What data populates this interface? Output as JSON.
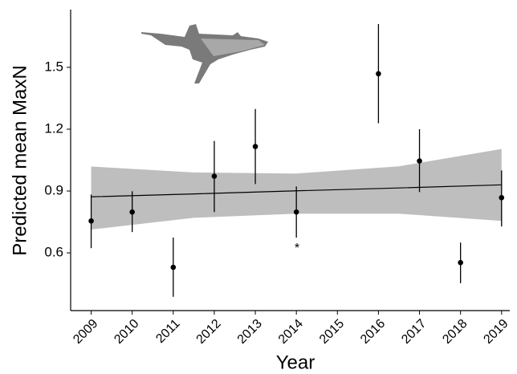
{
  "chart_data": {
    "type": "errorbar",
    "x_label": "Year",
    "y_label": "Predicted mean MaxN",
    "xlim": [
      2008.5,
      2019.2
    ],
    "ylim": [
      0.32,
      1.78
    ],
    "xticks": [
      2009,
      2010,
      2011,
      2012,
      2013,
      2014,
      2015,
      2016,
      2017,
      2018,
      2019
    ],
    "yticks": [
      0.6,
      0.9,
      1.2,
      1.5
    ],
    "series": [
      {
        "color": "#000000",
        "x": [
          2009,
          2010,
          2011,
          2012,
          2013,
          2014,
          2016,
          2017,
          2018,
          2019
        ],
        "values": [
          0.755,
          0.798,
          0.53,
          0.972,
          1.116,
          0.798,
          1.469,
          1.046,
          0.553,
          0.868
        ],
        "lower": [
          0.623,
          0.701,
          0.387,
          0.798,
          0.934,
          0.674,
          1.229,
          0.895,
          0.453,
          0.728
        ],
        "upper": [
          0.883,
          0.899,
          0.674,
          1.143,
          1.298,
          0.922,
          1.71,
          1.2,
          0.65,
          1.0
        ]
      }
    ],
    "trend": {
      "color": "#000000",
      "band_color": "#bebebe",
      "x": [
        2009,
        2011.5,
        2014,
        2016.5,
        2019
      ],
      "values": [
        0.872,
        0.886,
        0.901,
        0.915,
        0.93
      ],
      "lower": [
        0.713,
        0.77,
        0.79,
        0.79,
        0.755
      ],
      "upper": [
        1.019,
        0.99,
        0.985,
        1.02,
        1.104
      ]
    },
    "annotations": [
      {
        "text": "*"
      }
    ]
  }
}
